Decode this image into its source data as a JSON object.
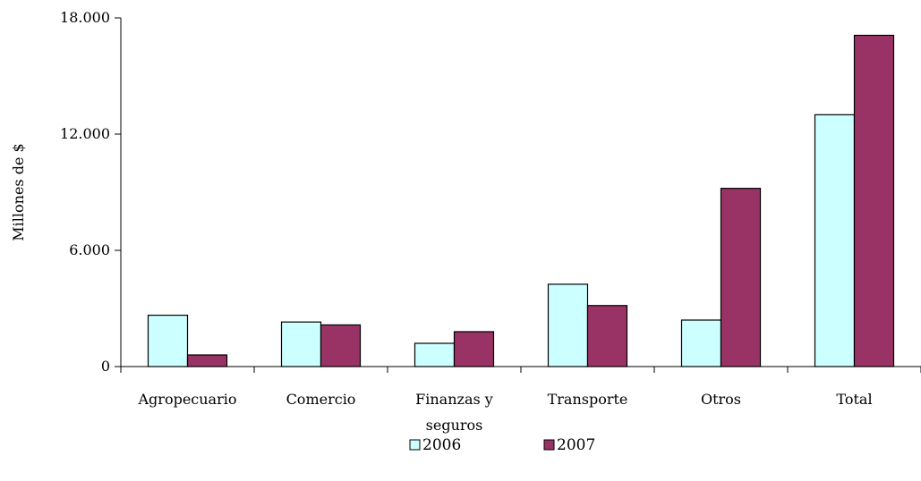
{
  "chart_data": {
    "type": "bar",
    "title": "",
    "xlabel": "",
    "ylabel": "Millones de $",
    "ylim": [
      0,
      18000
    ],
    "yticks": [
      0,
      6000,
      12000,
      18000
    ],
    "ytick_labels": [
      "0",
      "6.000",
      "12.000",
      "18.000"
    ],
    "categories": [
      [
        "Agropecuario"
      ],
      [
        "Comercio"
      ],
      [
        "Finanzas y",
        "seguros"
      ],
      [
        "Transporte"
      ],
      [
        "Otros"
      ],
      [
        "Total"
      ]
    ],
    "series": [
      {
        "name": "2006",
        "color": "#ccffff",
        "values": [
          2650,
          2300,
          1200,
          4250,
          2400,
          13000
        ]
      },
      {
        "name": "2007",
        "color": "#993366",
        "values": [
          600,
          2150,
          1800,
          3150,
          9200,
          17100
        ]
      }
    ],
    "grid": false,
    "legend_position": "bottom"
  }
}
